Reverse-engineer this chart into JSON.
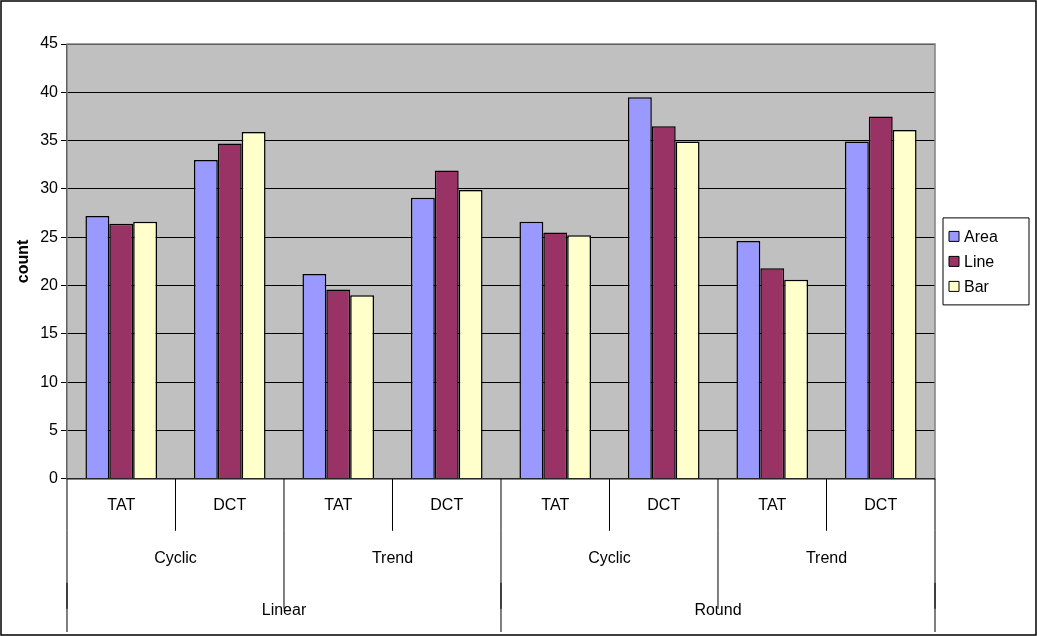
{
  "chart_data": {
    "type": "bar",
    "ylabel": "count",
    "categories": [
      "TAT",
      "DCT",
      "TAT",
      "DCT",
      "TAT",
      "DCT",
      "TAT",
      "DCT"
    ],
    "annotations": [
      "Cyclic",
      "Trend",
      "Cyclic",
      "Trend",
      "Linear",
      "Round"
    ],
    "series": [
      {
        "name": "Area",
        "color": "#9999ff",
        "values": [
          27.2,
          33.0,
          21.2,
          29.1,
          26.6,
          39.5,
          24.6,
          34.9
        ]
      },
      {
        "name": "Line",
        "color": "#993366",
        "values": [
          26.4,
          34.7,
          19.6,
          31.9,
          25.5,
          36.5,
          21.8,
          37.5
        ]
      },
      {
        "name": "Bar",
        "color": "#ffffcc",
        "values": [
          26.6,
          35.9,
          19.0,
          29.9,
          25.2,
          34.9,
          20.6,
          36.1
        ]
      }
    ],
    "ylim": [
      0,
      45
    ],
    "yticks": [
      0,
      5,
      10,
      15,
      20,
      25,
      30,
      35,
      40,
      45
    ],
    "grid": "y",
    "legend": "right"
  }
}
